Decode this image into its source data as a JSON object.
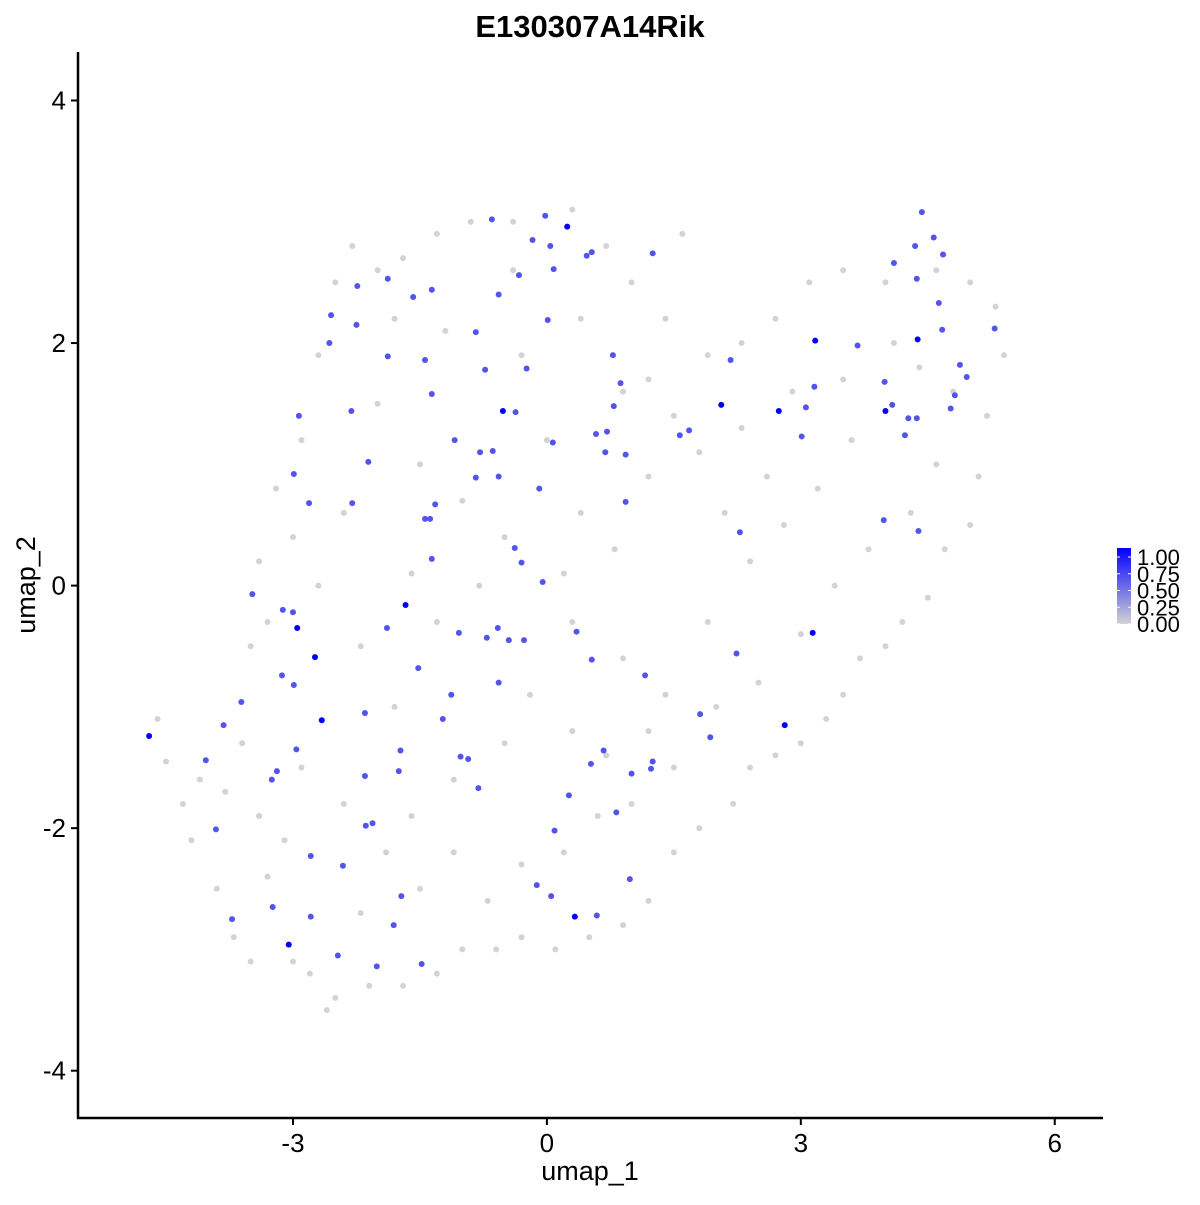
{
  "chart_data": {
    "type": "scatter",
    "title": "E130307A14Rik",
    "x_label": "umap_1",
    "y_label": "umap_2",
    "xlim": [
      -5.54,
      6.57
    ],
    "ylim": [
      -4.39,
      4.4
    ],
    "xticks": [
      -3,
      0,
      3,
      6
    ],
    "yticks": [
      -4,
      -2,
      0,
      2,
      4
    ],
    "x": [
      -4.6,
      -4.5,
      -4.3,
      -4.2,
      -4.1,
      -3.9,
      -3.7,
      -3.5,
      -3.3,
      -3.4,
      -3.6,
      -3.5,
      -3.3,
      -3.4,
      -3.2,
      -3.0,
      -2.9,
      -2.7,
      -2.5,
      -2.3,
      -2.0,
      -1.7,
      -1.3,
      -0.9,
      -0.4,
      0.3,
      0.7,
      1.0,
      1.6,
      1.4,
      1.2,
      1.5,
      1.9,
      2.3,
      2.7,
      3.1,
      3.5,
      4.0,
      4.6,
      5.0,
      5.3,
      5.4,
      5.2,
      5.1,
      5.0,
      4.7,
      4.5,
      4.2,
      4.0,
      3.7,
      3.5,
      3.3,
      3.0,
      2.7,
      2.4,
      2.2,
      1.8,
      1.5,
      1.2,
      0.9,
      0.5,
      0.1,
      -0.3,
      -0.6,
      -1.0,
      -1.3,
      -1.7,
      -2.1,
      -2.5,
      -2.8,
      -3.0,
      -2.6,
      -2.2,
      -1.9,
      -1.5,
      -1.1,
      -0.7,
      -0.3,
      0.2,
      0.6,
      1.0,
      1.5,
      2.0,
      2.5,
      3.0,
      3.4,
      3.8,
      4.3,
      4.6,
      3.6,
      3.2,
      2.6,
      2.1,
      1.8,
      1.2,
      0.8,
      0.4,
      0.0,
      -0.5,
      -1.0,
      -1.5,
      -2.0,
      -2.4,
      -2.7,
      -2.2,
      -1.8,
      -1.3,
      -0.8,
      -0.2,
      0.3,
      0.9,
      1.4,
      1.9,
      2.4,
      2.8,
      -0.5,
      -1.1,
      -1.6,
      -2.4,
      -2.9,
      -3.1,
      -3.8,
      0.3,
      0.7,
      1.2,
      -0.3,
      0.4,
      -1.2,
      -1.8,
      0.9,
      -0.4,
      0.2,
      -1.6,
      4.8,
      4.1,
      3.5,
      2.9,
      2.3,
      4.4,
      -0.65,
      -0.02,
      -0.17,
      0.04,
      -0.33,
      0.08,
      0.47,
      0.53,
      1.25,
      -0.57,
      -1.58,
      -1.36,
      -2.24,
      -1.88,
      -2.55,
      -2.25,
      -2.57,
      -1.88,
      -1.44,
      -0.84,
      0.01,
      -0.73,
      -0.24,
      -1.36,
      -2.31,
      -1.09,
      -0.79,
      -0.64,
      -0.84,
      -0.57,
      -0.37,
      0.07,
      -0.09,
      0.58,
      0.71,
      0.69,
      0.93,
      0.87,
      0.79,
      0.78,
      2.17,
      3.16,
      3.01,
      3.06,
      3.67,
      4.08,
      3.99,
      4.27,
      4.23,
      4.37,
      4.43,
      4.57,
      4.35,
      4.1,
      4.37,
      4.68,
      4.63,
      4.67,
      4.88,
      4.96,
      4.82,
      4.77,
      5.29,
      4.39,
      3.98,
      2.28,
      1.57,
      1.68,
      0.93,
      -1.44,
      -1.38,
      -1.32,
      -1.36,
      -2.3,
      -2.81,
      -2.99,
      -2.93,
      -2.11,
      -0.38,
      -0.3,
      -0.05,
      -1.04,
      -0.58,
      -0.45,
      -0.27,
      0.35,
      0.53,
      1.16,
      2.24,
      1.81,
      1.93,
      -3.48,
      -3.12,
      -3.0,
      -3.13,
      -2.99,
      -1.89,
      -1.52,
      -0.71,
      -0.57,
      -1.13,
      -1.23,
      -2.15,
      -3.61,
      -3.82,
      -4.03,
      -2.96,
      -3.19,
      -3.25,
      -1.73,
      -1.75,
      -2.15,
      -1.02,
      -0.93,
      -0.81,
      0.67,
      0.52,
      0.26,
      0.09,
      1.25,
      1.23,
      1.0,
      0.82,
      0.98,
      -0.12,
      0.05,
      0.59,
      -2.79,
      -2.41,
      -2.06,
      -2.14,
      -3.91,
      -3.24,
      -2.79,
      -3.72,
      -2.47,
      -2.01,
      -1.48,
      -1.72,
      -1.81,
      -4.7,
      -2.95,
      -2.74,
      -2.66,
      -1.67,
      -0.52,
      0.24,
      2.06,
      2.74,
      3.17,
      3.14,
      2.81,
      4.0,
      4.38,
      -3.05,
      0.33
    ],
    "y": [
      -1.1,
      -1.45,
      -1.8,
      -2.1,
      -1.6,
      -2.5,
      -2.9,
      -3.1,
      -2.4,
      -1.9,
      -1.3,
      -0.5,
      -0.3,
      0.2,
      0.8,
      0.4,
      1.2,
      1.9,
      2.5,
      2.8,
      2.6,
      2.7,
      2.9,
      3.0,
      3.0,
      3.1,
      2.8,
      2.5,
      2.9,
      2.2,
      1.7,
      1.4,
      1.9,
      2.0,
      2.2,
      2.5,
      2.6,
      2.5,
      2.6,
      2.5,
      2.3,
      1.9,
      1.4,
      0.9,
      0.5,
      0.3,
      -0.1,
      -0.3,
      -0.5,
      -0.6,
      -0.9,
      -1.1,
      -1.3,
      -1.4,
      -1.5,
      -1.8,
      -2.0,
      -2.2,
      -2.6,
      -2.8,
      -2.9,
      -3.0,
      -2.9,
      -3.0,
      -3.0,
      -3.2,
      -3.3,
      -3.3,
      -3.4,
      -3.2,
      -3.1,
      -3.5,
      -2.7,
      -2.2,
      -2.5,
      -2.2,
      -2.6,
      -2.3,
      -2.2,
      -1.9,
      -1.8,
      -1.5,
      -1.0,
      -0.8,
      -0.4,
      0.0,
      0.3,
      0.6,
      1.0,
      1.2,
      0.8,
      0.9,
      0.6,
      1.1,
      0.9,
      0.3,
      0.6,
      1.2,
      0.4,
      0.7,
      1.0,
      1.5,
      0.6,
      0.0,
      -0.5,
      -1.0,
      -0.3,
      0.0,
      -0.9,
      -0.3,
      -0.6,
      -0.9,
      -0.3,
      0.2,
      0.5,
      -1.3,
      -1.6,
      -1.9,
      -1.8,
      -1.5,
      -2.1,
      -1.7,
      -1.2,
      -1.4,
      -1.2,
      1.9,
      2.2,
      2.1,
      2.2,
      1.6,
      2.6,
      0.1,
      0.1,
      1.6,
      2.0,
      1.7,
      1.6,
      1.3,
      1.8,
      3.02,
      3.05,
      2.85,
      2.8,
      2.56,
      2.61,
      2.72,
      2.75,
      2.74,
      2.4,
      2.38,
      2.44,
      2.47,
      2.53,
      2.23,
      2.15,
      2.0,
      1.89,
      1.86,
      2.09,
      2.19,
      1.78,
      1.79,
      1.58,
      1.44,
      1.2,
      1.1,
      1.11,
      0.89,
      0.9,
      1.43,
      1.18,
      0.8,
      1.25,
      1.27,
      1.1,
      1.08,
      1.67,
      1.48,
      1.9,
      1.86,
      1.64,
      1.23,
      1.47,
      1.98,
      1.49,
      1.68,
      1.38,
      1.24,
      1.38,
      3.08,
      2.87,
      2.8,
      2.66,
      2.53,
      2.73,
      2.33,
      2.11,
      1.82,
      1.72,
      1.57,
      1.46,
      2.12,
      0.45,
      0.54,
      0.44,
      1.24,
      1.28,
      0.69,
      0.55,
      0.55,
      0.67,
      0.22,
      0.68,
      0.68,
      0.92,
      1.4,
      1.02,
      0.31,
      0.19,
      0.03,
      -0.39,
      -0.35,
      -0.45,
      -0.45,
      -0.38,
      -0.61,
      -0.74,
      -0.56,
      -1.06,
      -1.25,
      -0.07,
      -0.2,
      -0.22,
      -0.74,
      -0.82,
      -0.35,
      -0.68,
      -0.43,
      -0.8,
      -0.9,
      -1.1,
      -1.05,
      -0.96,
      -1.15,
      -1.44,
      -1.35,
      -1.53,
      -1.6,
      -1.36,
      -1.53,
      -1.57,
      -1.41,
      -1.43,
      -1.67,
      -1.36,
      -1.47,
      -1.73,
      -2.02,
      -1.45,
      -1.51,
      -1.55,
      -1.87,
      -2.42,
      -2.47,
      -2.56,
      -2.72,
      -2.23,
      -2.31,
      -1.96,
      -1.98,
      -2.01,
      -2.65,
      -2.73,
      -2.75,
      -3.05,
      -3.14,
      -3.12,
      -2.56,
      -2.8,
      -1.24,
      -0.35,
      -0.59,
      -1.11,
      -0.16,
      1.44,
      2.96,
      1.49,
      1.44,
      2.02,
      -0.39,
      -1.15,
      1.44,
      2.03,
      -2.96,
      -2.73
    ],
    "values": [
      0,
      0,
      0,
      0,
      0,
      0,
      0,
      0,
      0,
      0,
      0,
      0,
      0,
      0,
      0,
      0,
      0,
      0,
      0,
      0,
      0,
      0,
      0,
      0,
      0,
      0,
      0,
      0,
      0,
      0,
      0,
      0,
      0,
      0,
      0,
      0,
      0,
      0,
      0,
      0,
      0,
      0,
      0,
      0,
      0,
      0,
      0,
      0,
      0,
      0,
      0,
      0,
      0,
      0,
      0,
      0,
      0,
      0,
      0,
      0,
      0,
      0,
      0,
      0,
      0,
      0,
      0,
      0,
      0,
      0,
      0,
      0,
      0,
      0,
      0,
      0,
      0,
      0,
      0,
      0,
      0,
      0,
      0,
      0,
      0,
      0,
      0,
      0,
      0,
      0,
      0,
      0,
      0,
      0,
      0,
      0,
      0,
      0,
      0,
      0,
      0,
      0,
      0,
      0,
      0,
      0,
      0,
      0,
      0,
      0,
      0,
      0,
      0,
      0,
      0,
      0,
      0,
      0,
      0,
      0,
      0,
      0,
      0,
      0,
      0,
      0,
      0,
      0,
      0,
      0,
      0,
      0,
      0,
      0,
      0,
      0,
      0,
      0,
      0,
      0.6,
      0.6,
      0.6,
      0.6,
      0.6,
      0.6,
      0.6,
      0.6,
      0.6,
      0.6,
      0.6,
      0.6,
      0.6,
      0.6,
      0.6,
      0.6,
      0.6,
      0.6,
      0.6,
      0.6,
      0.6,
      0.6,
      0.6,
      0.6,
      0.6,
      0.6,
      0.6,
      0.6,
      0.6,
      0.6,
      0.6,
      0.6,
      0.6,
      0.6,
      0.6,
      0.6,
      0.6,
      0.6,
      0.6,
      0.6,
      0.6,
      0.6,
      0.6,
      0.6,
      0.6,
      0.6,
      0.6,
      0.6,
      0.6,
      0.6,
      0.6,
      0.6,
      0.6,
      0.6,
      0.6,
      0.6,
      0.6,
      0.6,
      0.6,
      0.6,
      0.6,
      0.6,
      0.6,
      0.6,
      0.6,
      0.6,
      0.6,
      0.6,
      0.6,
      0.6,
      0.6,
      0.6,
      0.6,
      0.6,
      0.6,
      0.6,
      0.6,
      0.6,
      0.6,
      0.6,
      0.6,
      0.6,
      0.6,
      0.6,
      0.6,
      0.6,
      0.6,
      0.6,
      0.6,
      0.6,
      0.6,
      0.6,
      0.6,
      0.6,
      0.6,
      0.6,
      0.6,
      0.6,
      0.6,
      0.6,
      0.6,
      0.6,
      0.6,
      0.6,
      0.6,
      0.6,
      0.6,
      0.6,
      0.6,
      0.6,
      0.6,
      0.6,
      0.6,
      0.6,
      0.6,
      0.6,
      0.6,
      0.6,
      0.6,
      0.6,
      0.6,
      0.6,
      0.6,
      0.6,
      0.6,
      0.6,
      0.6,
      0.6,
      0.6,
      0.6,
      0.6,
      0.6,
      0.6,
      0.6,
      0.6,
      0.6,
      0.6,
      0.6,
      0.6,
      0.6,
      1,
      1,
      1,
      1,
      1,
      1,
      1,
      1,
      1,
      1,
      1,
      1,
      1,
      1,
      1,
      1
    ],
    "colorbar": {
      "lim": [
        0,
        1
      ],
      "colors": [
        "#d3d3d3",
        "#0000ff"
      ],
      "ticks": [
        {
          "value": 0,
          "label": "0.00"
        },
        {
          "value": 0.25,
          "label": "0.25"
        },
        {
          "value": 0.5,
          "label": "0.50"
        },
        {
          "value": 0.75,
          "label": "0.75"
        },
        {
          "value": 1,
          "label": "1.00"
        }
      ]
    }
  }
}
